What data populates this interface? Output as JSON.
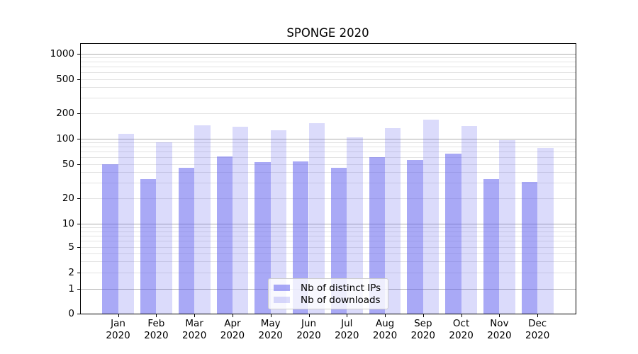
{
  "chart_data": {
    "type": "bar",
    "title": "SPONGE 2020",
    "categories": [
      "Jan\n2020",
      "Feb\n2020",
      "Mar\n2020",
      "Apr\n2020",
      "May\n2020",
      "Jun\n2020",
      "Jul\n2020",
      "Aug\n2020",
      "Sep\n2020",
      "Oct\n2020",
      "Nov\n2020",
      "Dec\n2020"
    ],
    "series": [
      {
        "name": "Nb of distinct IPs",
        "color": "rgba(90,90,238,0.52)",
        "values": [
          50,
          33,
          45,
          61,
          53,
          54,
          45,
          60,
          56,
          66,
          33,
          31
        ]
      },
      {
        "name": "Nb of downloads",
        "color": "rgba(90,90,238,0.22)",
        "values": [
          114,
          91,
          142,
          137,
          126,
          151,
          103,
          133,
          166,
          141,
          95,
          78
        ]
      }
    ],
    "yaxis": {
      "scale": "symlog",
      "tick_labels": [
        "0",
        "1",
        "2",
        "5",
        "10",
        "20",
        "50",
        "100",
        "200",
        "500",
        "1000"
      ],
      "tick_values": [
        0,
        1,
        2,
        5,
        10,
        20,
        50,
        100,
        200,
        500,
        1000
      ],
      "major_grid_values": [
        1,
        10,
        100,
        1000
      ],
      "ylim": [
        0,
        1300
      ],
      "grid": "both"
    },
    "legend": {
      "location": "lower center"
    },
    "colors": {
      "major_grid": "#adadad",
      "minor_grid": "#e3e3e3",
      "axis": "#000000",
      "legend_bg": "rgba(255,255,255,0.8)",
      "legend_border": "#cccccc"
    }
  }
}
